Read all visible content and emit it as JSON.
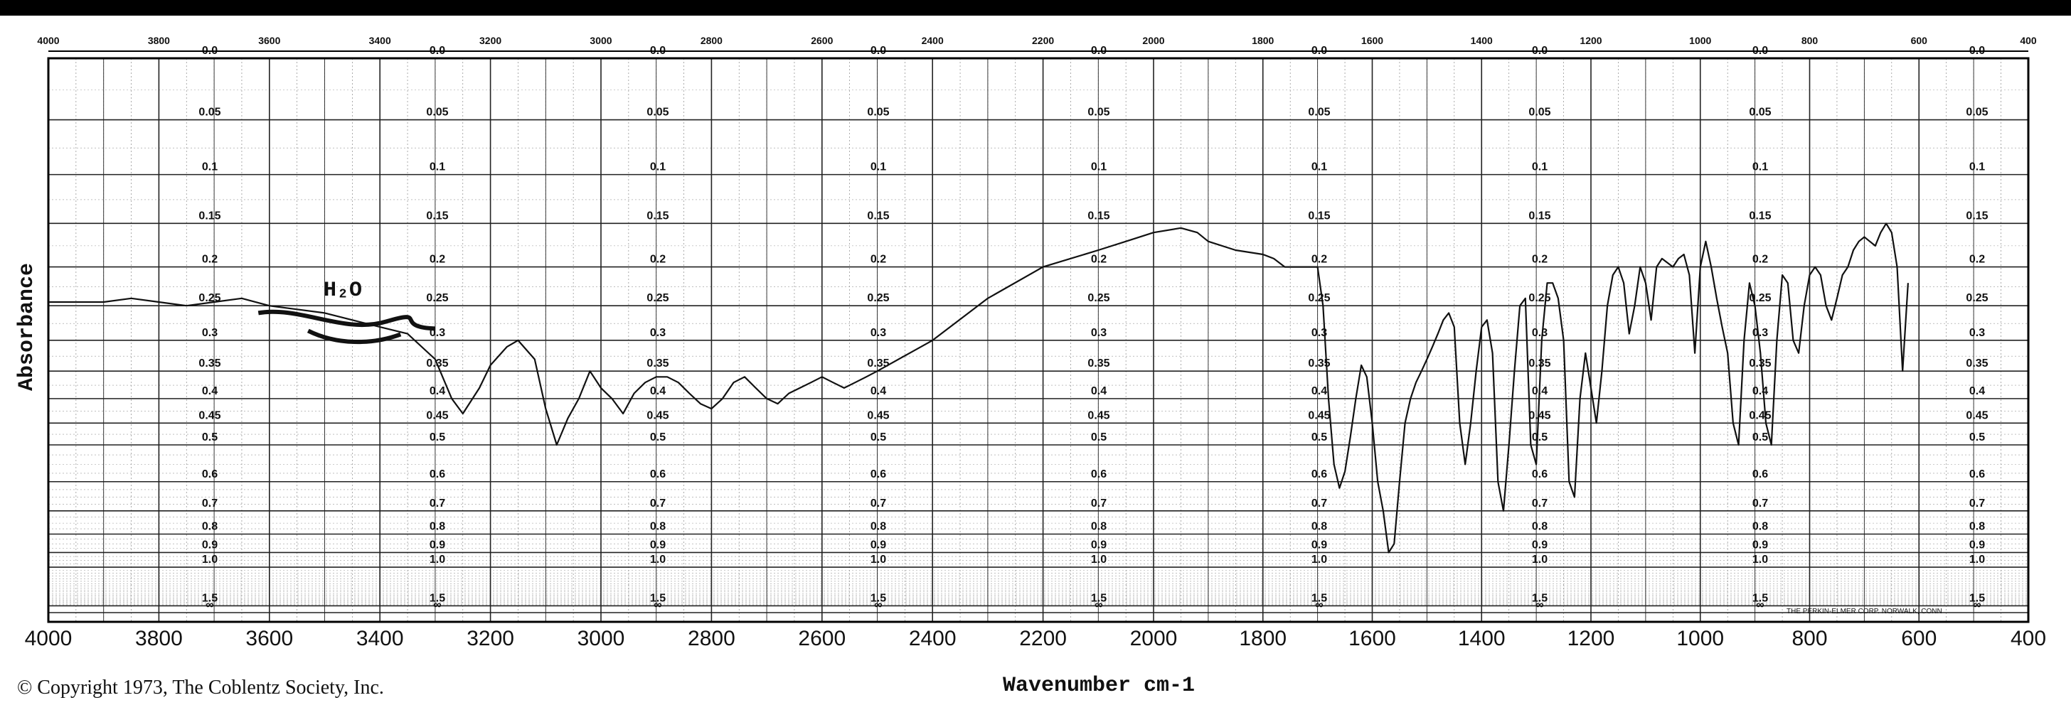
{
  "chart_data": {
    "type": "line",
    "title": "",
    "xlabel": "Wavenumber cm-1",
    "ylabel": "Absorbance",
    "xlim": [
      4000,
      400
    ],
    "ylim": [
      0,
      2
    ],
    "y_scale": "log (absorbance, printed as transmittance-style chart paper)",
    "grid": true,
    "x_ticks_bottom": [
      "4000",
      "3800",
      "3600",
      "3400",
      "3200",
      "3000",
      "2800",
      "2600",
      "2400",
      "2200",
      "2000",
      "1800",
      "1600",
      "1400",
      "1200",
      "1000",
      "800",
      "600",
      "400"
    ],
    "x_ticks_top": [
      "4000",
      "3800",
      "3600",
      "3400",
      "3200",
      "3000",
      "2800",
      "2600",
      "2400",
      "2200",
      "2000",
      "1800",
      "1600",
      "1400",
      "1200",
      "1000",
      "800",
      "600",
      "400"
    ],
    "y_tick_labels": [
      "0.0",
      "0.05",
      "0.1",
      "0.15",
      "0.2",
      "0.25",
      "0.3",
      "0.35",
      "0.4",
      "0.45",
      "0.5",
      "0.6",
      "0.7",
      "0.8",
      "0.9",
      "1.0",
      "1.5",
      "∞"
    ],
    "y_tick_values": [
      0.0,
      0.05,
      0.1,
      0.15,
      0.2,
      0.25,
      0.3,
      0.35,
      0.4,
      0.45,
      0.5,
      0.6,
      0.7,
      0.8,
      0.9,
      1.0,
      1.5,
      2.0
    ],
    "series": [
      {
        "x": [
          4000,
          3900,
          3850,
          3800,
          3750,
          3700,
          3650,
          3600,
          3550,
          3500,
          3450,
          3400,
          3350,
          3300,
          3270,
          3250,
          3220,
          3200,
          3170,
          3150,
          3120,
          3100,
          3080,
          3060,
          3040,
          3020,
          3000,
          2980,
          2960,
          2940,
          2920,
          2900,
          2880,
          2860,
          2840,
          2820,
          2800,
          2780,
          2760,
          2740,
          2720,
          2700,
          2680,
          2660,
          2640,
          2620,
          2600,
          2580,
          2560,
          2540,
          2520,
          2500,
          2400,
          2300,
          2200,
          2100,
          2050,
          2000,
          1950,
          1920,
          1900,
          1850,
          1800,
          1780,
          1760,
          1740,
          1720,
          1700,
          1690,
          1680,
          1670,
          1660,
          1650,
          1640,
          1630,
          1620,
          1610,
          1600,
          1590,
          1580,
          1570,
          1560,
          1550,
          1540,
          1530,
          1520,
          1510,
          1500,
          1490,
          1480,
          1470,
          1460,
          1450,
          1440,
          1430,
          1420,
          1410,
          1400,
          1390,
          1380,
          1370,
          1360,
          1350,
          1340,
          1330,
          1320,
          1310,
          1300,
          1290,
          1280,
          1270,
          1260,
          1250,
          1240,
          1230,
          1220,
          1210,
          1200,
          1190,
          1180,
          1170,
          1160,
          1150,
          1140,
          1130,
          1120,
          1110,
          1100,
          1090,
          1080,
          1070,
          1060,
          1050,
          1040,
          1030,
          1020,
          1010,
          1000,
          990,
          980,
          970,
          960,
          950,
          940,
          930,
          920,
          910,
          900,
          890,
          880,
          870,
          860,
          850,
          840,
          830,
          820,
          810,
          800,
          790,
          780,
          770,
          760,
          750,
          740,
          730,
          720,
          710,
          700,
          690,
          680,
          670,
          660,
          650,
          640,
          630,
          620
        ],
        "y": [
          0.245,
          0.245,
          0.24,
          0.245,
          0.25,
          0.245,
          0.24,
          0.25,
          0.255,
          0.26,
          0.27,
          0.28,
          0.29,
          0.33,
          0.4,
          0.43,
          0.38,
          0.34,
          0.31,
          0.3,
          0.33,
          0.42,
          0.5,
          0.44,
          0.4,
          0.35,
          0.38,
          0.4,
          0.43,
          0.39,
          0.37,
          0.36,
          0.36,
          0.37,
          0.39,
          0.41,
          0.42,
          0.4,
          0.37,
          0.36,
          0.38,
          0.4,
          0.41,
          0.39,
          0.38,
          0.37,
          0.36,
          0.37,
          0.38,
          0.37,
          0.36,
          0.35,
          0.3,
          0.24,
          0.2,
          0.18,
          0.17,
          0.16,
          0.155,
          0.16,
          0.17,
          0.18,
          0.185,
          0.19,
          0.2,
          0.2,
          0.2,
          0.2,
          0.25,
          0.4,
          0.55,
          0.62,
          0.57,
          0.48,
          0.4,
          0.34,
          0.36,
          0.45,
          0.6,
          0.7,
          0.9,
          0.85,
          0.6,
          0.45,
          0.4,
          0.37,
          0.35,
          0.33,
          0.31,
          0.29,
          0.27,
          0.26,
          0.28,
          0.45,
          0.55,
          0.45,
          0.35,
          0.28,
          0.27,
          0.32,
          0.6,
          0.7,
          0.5,
          0.35,
          0.25,
          0.24,
          0.5,
          0.55,
          0.3,
          0.22,
          0.22,
          0.24,
          0.3,
          0.6,
          0.65,
          0.4,
          0.32,
          0.38,
          0.45,
          0.35,
          0.25,
          0.21,
          0.2,
          0.22,
          0.29,
          0.25,
          0.2,
          0.22,
          0.27,
          0.2,
          0.19,
          0.195,
          0.2,
          0.19,
          0.185,
          0.21,
          0.32,
          0.2,
          0.17,
          0.2,
          0.24,
          0.28,
          0.32,
          0.45,
          0.5,
          0.3,
          0.22,
          0.25,
          0.32,
          0.45,
          0.5,
          0.3,
          0.21,
          0.22,
          0.3,
          0.32,
          0.25,
          0.21,
          0.2,
          0.21,
          0.25,
          0.27,
          0.24,
          0.21,
          0.2,
          0.18,
          0.17,
          0.165,
          0.17,
          0.175,
          0.16,
          0.15,
          0.16,
          0.2,
          0.35,
          0.22
        ]
      }
    ]
  },
  "copyright": "© Copyright 1973, The Coblentz Society, Inc.",
  "maker": "THE PERKIN-ELMER CORP. NORWALK, CONN",
  "handwritten_note": "H₂O",
  "colors": {
    "ink": "#111111",
    "frame": "#000000",
    "paper": "#ffffff"
  }
}
